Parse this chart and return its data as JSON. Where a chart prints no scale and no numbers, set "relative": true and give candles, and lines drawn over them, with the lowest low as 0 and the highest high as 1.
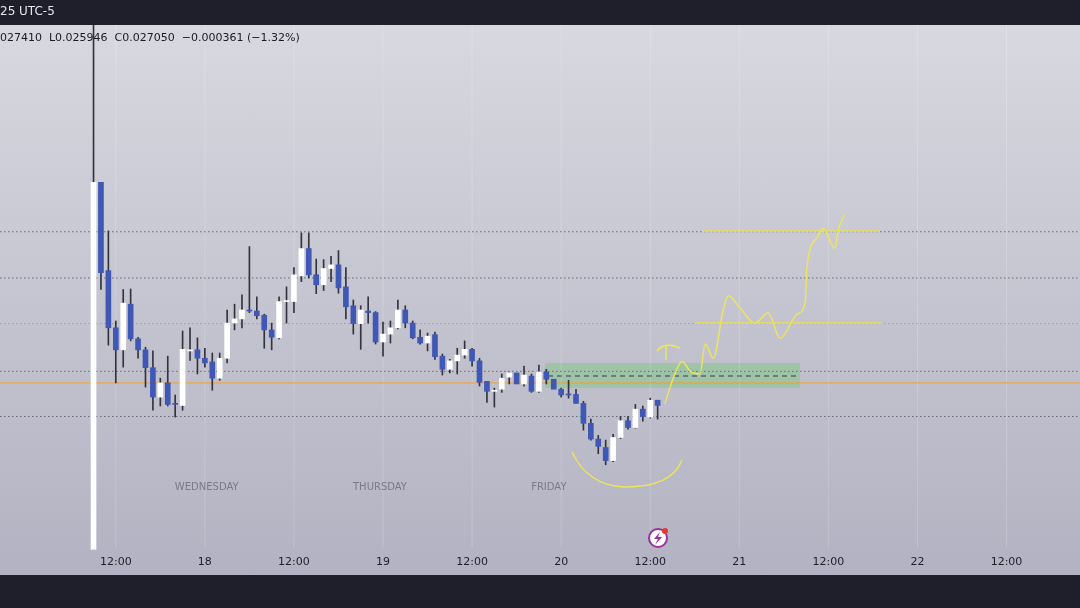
{
  "chart_data": {
    "type": "candlestick",
    "relative": true,
    "x": [
      "--06-17T09:00",
      "--06-17T10:00",
      "--06-17T11:00",
      "--06-17T12:00",
      "--06-17T13:00",
      "--06-17T14:00",
      "--06-17T15:00",
      "--06-17T16:00",
      "--06-17T17:00",
      "--06-17T18:00",
      "--06-17T19:00",
      "--06-17T20:00",
      "--06-17T21:00",
      "--06-17T22:00",
      "--06-17T23:00",
      "--06-18T00:00",
      "--06-18T01:00",
      "--06-18T02:00",
      "--06-18T03:00",
      "--06-18T04:00",
      "--06-18T05:00",
      "--06-18T06:00",
      "--06-18T07:00",
      "--06-18T08:00",
      "--06-18T09:00",
      "--06-18T10:00",
      "--06-18T11:00",
      "--06-18T12:00",
      "--06-18T13:00",
      "--06-18T14:00",
      "--06-18T15:00",
      "--06-18T16:00",
      "--06-18T17:00",
      "--06-18T18:00",
      "--06-18T19:00",
      "--06-18T20:00",
      "--06-18T21:00",
      "--06-18T22:00",
      "--06-18T23:00",
      "--06-19T00:00",
      "--06-19T01:00",
      "--06-19T02:00",
      "--06-19T03:00",
      "--06-19T04:00",
      "--06-19T05:00",
      "--06-19T06:00",
      "--06-19T07:00",
      "--06-19T08:00",
      "--06-19T09:00",
      "--06-19T10:00",
      "--06-19T11:00",
      "--06-19T12:00",
      "--06-19T13:00",
      "--06-19T14:00",
      "--06-19T15:00",
      "--06-19T16:00",
      "--06-19T17:00",
      "--06-19T18:00",
      "--06-19T19:00",
      "--06-19T20:00",
      "--06-19T21:00",
      "--06-19T22:00",
      "--06-19T23:00",
      "--06-20T00:00",
      "--06-20T01:00",
      "--06-20T02:00",
      "--06-20T03:00",
      "--06-20T04:00",
      "--06-20T05:00",
      "--06-20T06:00",
      "--06-20T07:00",
      "--06-20T08:00",
      "--06-20T09:00",
      "--06-20T10:00",
      "--06-20T11:00",
      "--06-20T12:00",
      "--06-20T13:00"
    ],
    "ohlc": [
      [
        0,
        1,
        0,
        0.7
      ],
      [
        0.7,
        0.7,
        0.496,
        0.528
      ],
      [
        0.532,
        0.608,
        0.39,
        0.423
      ],
      [
        0.423,
        0.436,
        0.318,
        0.381
      ],
      [
        0.381,
        0.496,
        0.348,
        0.47
      ],
      [
        0.468,
        0.497,
        0.398,
        0.402
      ],
      [
        0.402,
        0.405,
        0.365,
        0.381
      ],
      [
        0.381,
        0.386,
        0.31,
        0.347
      ],
      [
        0.347,
        0.379,
        0.266,
        0.291
      ],
      [
        0.291,
        0.327,
        0.274,
        0.318
      ],
      [
        0.318,
        0.369,
        0.274,
        0.277
      ],
      [
        0.279,
        0.295,
        0.253,
        0.277
      ],
      [
        0.275,
        0.417,
        0.266,
        0.382
      ],
      [
        0.379,
        0.423,
        0.361,
        0.381
      ],
      [
        0.381,
        0.404,
        0.335,
        0.365
      ],
      [
        0.365,
        0.384,
        0.348,
        0.356
      ],
      [
        0.358,
        0.375,
        0.304,
        0.327
      ],
      [
        0.327,
        0.375,
        0.323,
        0.365
      ],
      [
        0.365,
        0.457,
        0.356,
        0.432
      ],
      [
        0.432,
        0.468,
        0.419,
        0.44
      ],
      [
        0.44,
        0.486,
        0.423,
        0.457
      ],
      [
        0.456,
        0.578,
        0.452,
        0.455
      ],
      [
        0.455,
        0.482,
        0.44,
        0.446
      ],
      [
        0.447,
        0.449,
        0.384,
        0.419
      ],
      [
        0.419,
        0.432,
        0.381,
        0.405
      ],
      [
        0.404,
        0.482,
        0.402,
        0.473
      ],
      [
        0.473,
        0.501,
        0.432,
        0.474
      ],
      [
        0.473,
        0.538,
        0.452,
        0.524
      ],
      [
        0.522,
        0.604,
        0.511,
        0.574
      ],
      [
        0.574,
        0.604,
        0.518,
        0.524
      ],
      [
        0.524,
        0.554,
        0.488,
        0.505
      ],
      [
        0.505,
        0.553,
        0.494,
        0.536
      ],
      [
        0.536,
        0.559,
        0.511,
        0.543
      ],
      [
        0.543,
        0.57,
        0.489,
        0.499
      ],
      [
        0.501,
        0.538,
        0.44,
        0.463
      ],
      [
        0.465,
        0.476,
        0.411,
        0.431
      ],
      [
        0.431,
        0.465,
        0.382,
        0.457
      ],
      [
        0.455,
        0.482,
        0.432,
        0.452
      ],
      [
        0.452,
        0.454,
        0.392,
        0.396
      ],
      [
        0.396,
        0.434,
        0.369,
        0.411
      ],
      [
        0.411,
        0.436,
        0.394,
        0.423
      ],
      [
        0.423,
        0.476,
        0.421,
        0.457
      ],
      [
        0.457,
        0.465,
        0.423,
        0.432
      ],
      [
        0.432,
        0.436,
        0.402,
        0.404
      ],
      [
        0.405,
        0.419,
        0.392,
        0.394
      ],
      [
        0.394,
        0.413,
        0.379,
        0.407
      ],
      [
        0.41,
        0.415,
        0.363,
        0.368
      ],
      [
        0.369,
        0.373,
        0.333,
        0.344
      ],
      [
        0.344,
        0.363,
        0.337,
        0.36
      ],
      [
        0.36,
        0.384,
        0.335,
        0.371
      ],
      [
        0.371,
        0.398,
        0.365,
        0.382
      ],
      [
        0.382,
        0.384,
        0.35,
        0.36
      ],
      [
        0.36,
        0.365,
        0.312,
        0.319
      ],
      [
        0.321,
        0.321,
        0.281,
        0.302
      ],
      [
        0.302,
        0.308,
        0.272,
        0.304
      ],
      [
        0.306,
        0.335,
        0.3,
        0.327
      ],
      [
        0.329,
        0.337,
        0.316,
        0.337
      ],
      [
        0.337,
        0.337,
        0.316,
        0.316
      ],
      [
        0.316,
        0.35,
        0.312,
        0.333
      ],
      [
        0.331,
        0.335,
        0.3,
        0.302
      ],
      [
        0.302,
        0.352,
        0.3,
        0.339
      ],
      [
        0.339,
        0.344,
        0.316,
        0.325
      ],
      [
        0.325,
        0.325,
        0.306,
        0.306
      ],
      [
        0.306,
        0.308,
        0.291,
        0.295
      ],
      [
        0.296,
        0.323,
        0.289,
        0.295
      ],
      [
        0.296,
        0.306,
        0.279,
        0.279
      ],
      [
        0.279,
        0.283,
        0.228,
        0.241
      ],
      [
        0.241,
        0.249,
        0.209,
        0.211
      ],
      [
        0.211,
        0.218,
        0.183,
        0.197
      ],
      [
        0.195,
        0.209,
        0.162,
        0.17
      ],
      [
        0.17,
        0.22,
        0.168,
        0.214
      ],
      [
        0.214,
        0.254,
        0.212,
        0.246
      ],
      [
        0.246,
        0.254,
        0.23,
        0.233
      ],
      [
        0.233,
        0.277,
        0.232,
        0.268
      ],
      [
        0.268,
        0.274,
        0.245,
        0.254
      ],
      [
        0.253,
        0.289,
        0.251,
        0.285
      ],
      [
        0.285,
        0.285,
        0.249,
        0.275
      ]
    ],
    "colors": [
      "#ffffff",
      "#3f57b5",
      "#3f57b5",
      "#3f57b5",
      "#ffffff",
      "#3f57b5",
      "#3f57b5",
      "#3f57b5",
      "#3f57b5",
      "#ffffff",
      "#3f57b5",
      "#3f57b5",
      "#ffffff",
      "#ffffff",
      "#3f57b5",
      "#3f57b5",
      "#3f57b5",
      "#ffffff",
      "#ffffff",
      "#ffffff",
      "#ffffff",
      "#3f57b5",
      "#3f57b5",
      "#3f57b5",
      "#3f57b5",
      "#ffffff",
      "#ffffff",
      "#ffffff",
      "#ffffff",
      "#3f57b5",
      "#3f57b5",
      "#ffffff",
      "#ffffff",
      "#3f57b5",
      "#3f57b5",
      "#3f57b5",
      "#ffffff",
      "#3f57b5",
      "#3f57b5",
      "#ffffff",
      "#ffffff",
      "#ffffff",
      "#3f57b5",
      "#3f57b5",
      "#3f57b5",
      "#ffffff",
      "#3f57b5",
      "#3f57b5",
      "#ffffff",
      "#ffffff",
      "#ffffff",
      "#3f57b5",
      "#3f57b5",
      "#3f57b5",
      "#ffffff",
      "#ffffff",
      "#ffffff",
      "#3f57b5",
      "#ffffff",
      "#3f57b5",
      "#ffffff",
      "#3f57b5",
      "#3f57b5",
      "#3f57b5",
      "#3f57b5",
      "#3f57b5",
      "#3f57b5",
      "#3f57b5",
      "#3f57b5",
      "#3f57b5",
      "#ffffff",
      "#ffffff",
      "#3f57b5",
      "#ffffff",
      "#3f57b5",
      "#ffffff",
      "#3f57b5"
    ],
    "xlim": [
      "--06-16T20:24",
      "--06-22T21:54"
    ],
    "xticks": [
      {
        "value": "--06-17T12:00",
        "label": "12:00"
      },
      {
        "value": "--06-18",
        "label": "18"
      },
      {
        "value": "--06-18T12:00",
        "label": "12:00"
      },
      {
        "value": "--06-19",
        "label": "19"
      },
      {
        "value": "--06-19T12:00",
        "label": "12:00"
      },
      {
        "value": "--06-20",
        "label": "20"
      },
      {
        "value": "--06-20T12:00",
        "label": "12:00"
      },
      {
        "value": "--06-21",
        "label": "21"
      },
      {
        "value": "--06-21T12:00",
        "label": "12:00"
      },
      {
        "value": "--06-22",
        "label": "22"
      },
      {
        "value": "--06-22T12:00",
        "label": "12:00"
      }
    ],
    "series": [
      {
        "type": "line",
        "color": "#ece45e",
        "x": [
          "--06-20T14:00",
          "--06-20T15:06",
          "--06-20T16:18",
          "--06-20T17:24",
          "--06-20T18:42",
          "--06-20T19:24",
          "--06-20T20:30",
          "--06-20T21:48",
          "--06-20T22:30",
          "--06-21T00:06",
          "--06-21T02:06",
          "--06-21T03:54",
          "--06-21T05:30",
          "--06-21T07:48",
          "--06-21T08:54",
          "--06-21T09:06",
          "--06-21T10:30",
          "--06-21T11:18",
          "--06-21T12:54",
          "--06-21T13:18",
          "--06-21T14:06"
        ],
        "values": [
          0.279,
          0.327,
          0.359,
          0.34,
          0.335,
          0.392,
          0.365,
          0.455,
          0.484,
          0.461,
          0.432,
          0.451,
          0.403,
          0.449,
          0.474,
          0.537,
          0.595,
          0.612,
          0.574,
          0.608,
          0.637
        ]
      }
    ],
    "grid": "x",
    "ref_lines": [
      {
        "axis": "y",
        "value": 0.606,
        "color": "#6b6b78",
        "line_style": "dotted"
      },
      {
        "axis": "y",
        "value": 0.518,
        "color": "#6b6b78",
        "line_style": "dotted"
      },
      {
        "axis": "y",
        "value": 0.431,
        "color": "#c98a9a",
        "line_style": "dotted"
      },
      {
        "axis": "y",
        "value": 0.34,
        "color": "#6b6b78",
        "line_style": "dotted"
      },
      {
        "axis": "y",
        "value": 0.318,
        "color": "#f0a030",
        "line_style": "solid"
      },
      {
        "axis": "y",
        "value": 0.275,
        "color": "#d8d060",
        "line_style": "dotted"
      },
      {
        "axis": "y",
        "value": 0.254,
        "color": "#6b6b78",
        "line_style": "dotted"
      }
    ],
    "annotations": [
      "25 UTC-5",
      "027410  L0.025946  C0.027050  −0.000361 (−1.32%)",
      "WEDNESDAY",
      "THURSDAY",
      "FRIDAY"
    ]
  }
}
